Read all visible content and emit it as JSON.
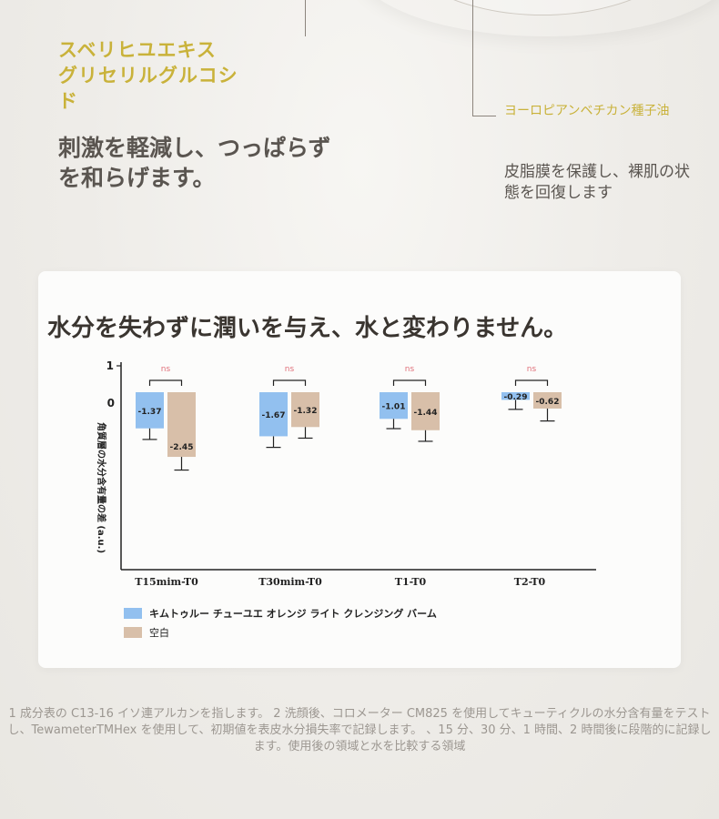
{
  "ingredient1": {
    "name": "スベリヒユエキス グリセリルグルコシド",
    "desc": "刺激を軽減し、つっぱらずを和らげます。"
  },
  "ingredient2": {
    "name": "ヨーロピアンベチカン種子油",
    "desc": "皮脂膜を保護し、裸肌の状態を回復します"
  },
  "chart_data": {
    "type": "bar",
    "title": "水分を失わずに潤いを与え、水と変わりません。",
    "ylabel": "角質層の水分含有量の差 (a.u.)",
    "yticks": [
      "1",
      "0"
    ],
    "ylim": [
      -2.95,
      1
    ],
    "categories": [
      "T15mim-T0",
      "T30mim-T0",
      "T1-T0",
      "T2-T0"
    ],
    "series": [
      {
        "name": "キムトゥルー チューユエ オレンジ ライト クレンジング バーム",
        "color": "#92c0ef",
        "values": [
          -1.37,
          -1.67,
          -1.01,
          -0.29
        ],
        "errors": [
          0.42,
          0.42,
          0.37,
          0.36
        ]
      },
      {
        "name": "空白",
        "color": "#d8bfa9",
        "values": [
          -2.45,
          -1.32,
          -1.44,
          -0.62
        ],
        "errors": [
          0.5,
          0.42,
          0.42,
          0.47
        ]
      }
    ],
    "significance": [
      "ns",
      "ns",
      "ns",
      "ns"
    ],
    "grid": false
  },
  "footnote": "1 成分表の C13-16 イソ連アルカンを指します。 2 洗顔後、コロメーター CM825 を使用してキューティクルの水分含有量をテストし、TewameterTMHex を使用して、初期値を表皮水分損失率で記録します。 、15 分、30 分、1 時間、2 時間後に段階的に記録します。使用後の領域と水を比較する領域"
}
